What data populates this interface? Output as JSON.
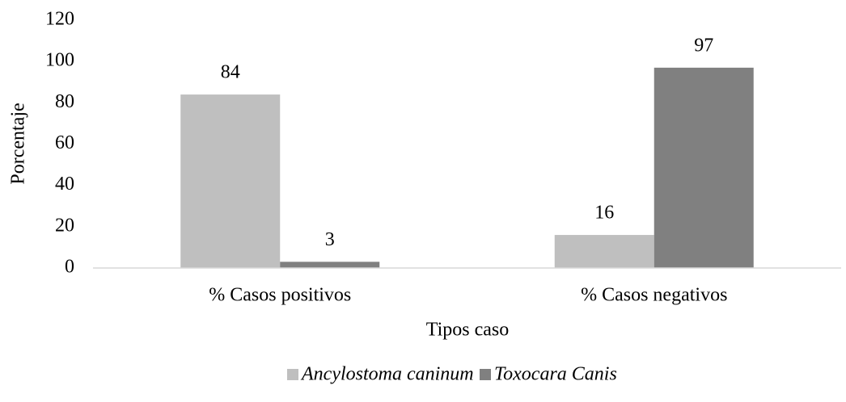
{
  "chart_data": {
    "type": "bar",
    "x_label": "Tipos caso",
    "y_label": "Porcentaje",
    "categories": [
      "% Casos positivos",
      "% Casos negativos"
    ],
    "series": [
      {
        "name": "Ancylostoma caninum",
        "color": "#bfbfbf",
        "values": [
          84,
          16
        ]
      },
      {
        "name": "Toxocara Canis",
        "color": "#808080",
        "values": [
          3,
          97
        ]
      }
    ],
    "ylim": [
      0,
      120
    ],
    "yticks": [
      0,
      20,
      40,
      60,
      80,
      100,
      120
    ],
    "grid": false,
    "legend": "bottom"
  }
}
